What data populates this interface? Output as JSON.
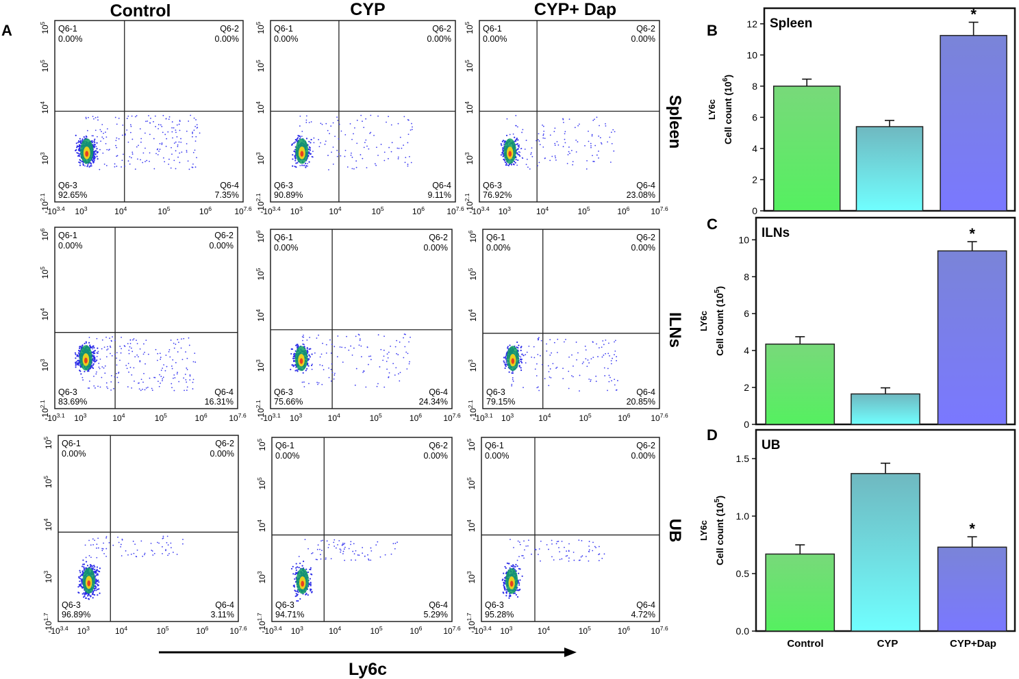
{
  "figure": {
    "panel_labels": [
      "A",
      "B",
      "C",
      "D"
    ],
    "column_titles": [
      "Control",
      "CYP",
      "CYP+ Dap"
    ],
    "row_titles": [
      "Spleen",
      "ILNs",
      "UB"
    ],
    "x_axis_label": "Ly6c"
  },
  "flow": {
    "quadrant_names": [
      "Q6-1",
      "Q6-2",
      "Q6-3",
      "Q6-4"
    ],
    "x_ticks": [
      [
        "-10^3.4",
        "10^3",
        "10^4",
        "10^5",
        "10^6",
        "10^7.6"
      ],
      [
        "-10^3.1",
        "10^3",
        "10^4",
        "10^5",
        "10^6",
        "10^7.6"
      ],
      [
        "-10^3.4",
        "10^3",
        "10^4",
        "10^5",
        "10^6",
        "10^7.6"
      ]
    ],
    "y_ticks": [
      [
        "10^2.1",
        "10^3",
        "10^4",
        "10^5",
        "10^5"
      ],
      [
        "10^2.1",
        "10^3",
        "10^4",
        "10^5",
        "10^6"
      ],
      [
        "10^1.7",
        "10^3",
        "10^4",
        "10^5",
        "10^5"
      ]
    ],
    "plots": [
      [
        {
          "q1": "0.00%",
          "q2": "0.00%",
          "q3": "92.65%",
          "q4": "7.35%"
        },
        {
          "q1": "0.00%",
          "q2": "0.00%",
          "q3": "90.89%",
          "q4": "9.11%"
        },
        {
          "q1": "0.00%",
          "q2": "0.00%",
          "q3": "76.92%",
          "q4": "23.08%"
        }
      ],
      [
        {
          "q1": "0.00%",
          "q2": "0.00%",
          "q3": "83.69%",
          "q4": "16.31%"
        },
        {
          "q1": "0.00%",
          "q2": "0.00%",
          "q3": "75.66%",
          "q4": "24.34%"
        },
        {
          "q1": "0.00%",
          "q2": "0.00%",
          "q3": "79.15%",
          "q4": "20.85%"
        }
      ],
      [
        {
          "q1": "0.00%",
          "q2": "0.00%",
          "q3": "96.89%",
          "q4": "3.11%"
        },
        {
          "q1": "0.00%",
          "q2": "0.00%",
          "q3": "94.71%",
          "q4": "5.29%"
        },
        {
          "q1": "0.00%",
          "q2": "0.00%",
          "q3": "95.28%",
          "q4": "4.72%"
        }
      ]
    ]
  },
  "colors": {
    "control_top": "#78d97a",
    "control_bottom": "#55f060",
    "cyp_top": "#6fb8c0",
    "cyp_bottom": "#70ffff",
    "dap_top": "#7a84d8",
    "dap_bottom": "#7a78ff",
    "dot": "#2a2ae8"
  },
  "chart_data": [
    {
      "type": "bar",
      "panel": "B",
      "title": "Spleen",
      "ylabel": "Cell count (10^6)",
      "ylabel_prefix": "LY6c",
      "ylabel_main": "Cell count (10",
      "ylabel_exp": "6",
      "ylabel_suffix": ")",
      "categories": [
        "Control",
        "CYP",
        "CYP+Dap"
      ],
      "values": [
        8.0,
        5.4,
        11.25
      ],
      "errors": [
        0.45,
        0.4,
        0.85
      ],
      "significance": [
        "",
        "",
        "*"
      ],
      "ylim": [
        0,
        13
      ],
      "yticks": [
        0,
        2,
        4,
        6,
        8,
        10,
        12
      ],
      "ytick_labels": [
        "0",
        "2",
        "4",
        "6",
        "8",
        "10",
        "12"
      ]
    },
    {
      "type": "bar",
      "panel": "C",
      "title": "ILNs",
      "ylabel": "Cell count (10^5)",
      "ylabel_prefix": "LY6c",
      "ylabel_main": "Cell count (10",
      "ylabel_exp": "5",
      "ylabel_suffix": ")",
      "categories": [
        "Control",
        "CYP",
        "CYP+Dap"
      ],
      "values": [
        4.35,
        1.65,
        9.4
      ],
      "errors": [
        0.4,
        0.33,
        0.5
      ],
      "significance": [
        "",
        "",
        "*"
      ],
      "ylim": [
        0,
        11.2
      ],
      "yticks": [
        0,
        2,
        4,
        6,
        8,
        10
      ],
      "ytick_labels": [
        "0",
        "2",
        "4",
        "6",
        "8",
        "10"
      ]
    },
    {
      "type": "bar",
      "panel": "D",
      "title": "UB",
      "ylabel": "Cell count (10^5)",
      "ylabel_prefix": "LY6c",
      "ylabel_main": "Cell count (10",
      "ylabel_exp": "5",
      "ylabel_suffix": ")",
      "categories": [
        "Control",
        "CYP",
        "CYP+Dap"
      ],
      "values": [
        0.67,
        1.37,
        0.73
      ],
      "errors": [
        0.08,
        0.09,
        0.09
      ],
      "significance": [
        "",
        "",
        "*"
      ],
      "ylim": [
        0,
        1.75
      ],
      "yticks": [
        0.0,
        0.5,
        1.0,
        1.5
      ],
      "ytick_labels": [
        "0.0",
        "0.5",
        "1.0",
        "1.5"
      ]
    }
  ]
}
